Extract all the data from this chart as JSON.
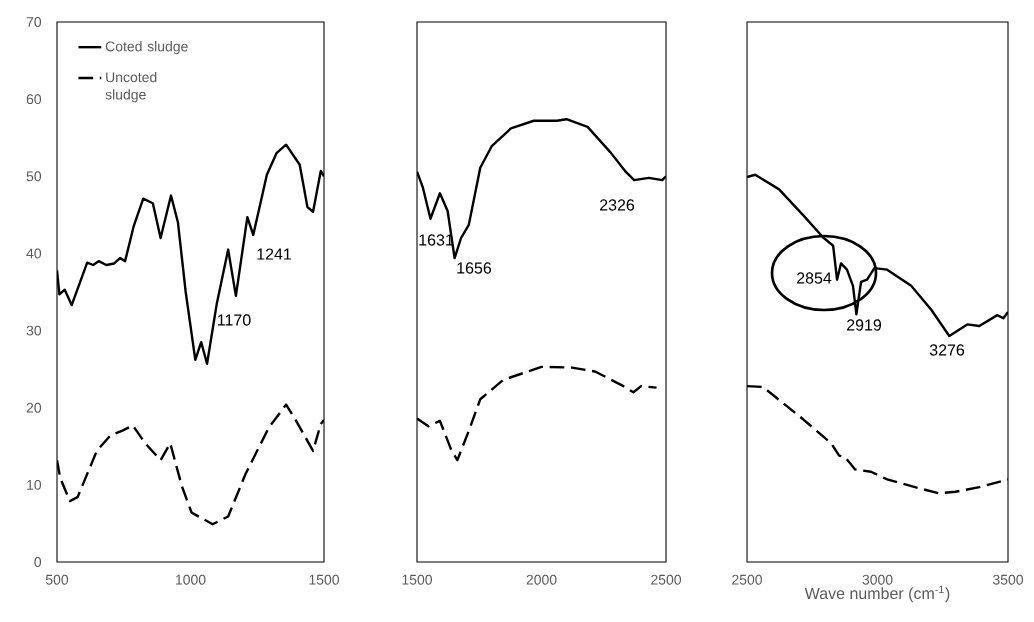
{
  "chart_data": [
    {
      "type": "line",
      "xlim": [
        500,
        1500
      ],
      "xticks": [
        500,
        1000,
        1500
      ],
      "ylim": [
        0,
        70
      ],
      "yticks": [
        0,
        10,
        20,
        30,
        40,
        50,
        60,
        70
      ],
      "legend": "top left",
      "series": [
        {
          "name": "Coted sludge",
          "color": "#000000",
          "line_style": "solid",
          "x": [
            500,
            509,
            529,
            555,
            613,
            635,
            656,
            685,
            714,
            736,
            755,
            787,
            823,
            859,
            888,
            927,
            953,
            982,
            1018,
            1040,
            1062,
            1098,
            1141,
            1170,
            1213,
            1235,
            1286,
            1322,
            1358,
            1409,
            1438,
            1459,
            1488,
            1500
          ],
          "values": [
            37.8,
            34.7,
            35.3,
            33.3,
            38.8,
            38.5,
            39,
            38.5,
            38.7,
            39.4,
            39,
            43.5,
            47.1,
            46.5,
            42,
            47.5,
            44,
            35,
            26.2,
            28.5,
            25.7,
            33.4,
            40.5,
            34.5,
            44.7,
            42.4,
            50.2,
            53,
            54.1,
            51.5,
            46,
            45.4,
            50.7,
            50
          ]
        },
        {
          "name": "Uncoted sludge",
          "color": "#000000",
          "line_style": "dashed",
          "x": [
            500,
            512,
            548,
            577,
            649,
            700,
            743,
            784,
            830,
            888,
            924,
            967,
            1004,
            1083,
            1141,
            1206,
            1293,
            1358,
            1394,
            1459,
            1488,
            1500
          ],
          "values": [
            13.2,
            10.9,
            7.9,
            8.4,
            14.4,
            16.4,
            17,
            17.7,
            15.4,
            13.2,
            15.4,
            9.9,
            6.4,
            4.9,
            5.9,
            11.4,
            17.4,
            20.4,
            18.4,
            14.4,
            17.9,
            18.4
          ]
        }
      ],
      "annotations": [
        "1241",
        "1170"
      ]
    },
    {
      "type": "line",
      "xlim": [
        1500,
        2500
      ],
      "xticks": [
        1500,
        2000,
        2500
      ],
      "ylim": [
        0,
        70
      ],
      "tick_labels": "x",
      "series": [
        {
          "color": "#000000",
          "line_style": "solid",
          "x": [
            1500,
            1523,
            1554,
            1592,
            1623,
            1651,
            1677,
            1708,
            1754,
            1800,
            1877,
            1969,
            2062,
            2100,
            2185,
            2277,
            2338,
            2372,
            2431,
            2485,
            2500
          ],
          "values": [
            50.6,
            48.6,
            44.5,
            47.8,
            45.5,
            39.4,
            42,
            43.7,
            51.1,
            53.9,
            56.2,
            57.2,
            57.2,
            57.4,
            56.4,
            53.1,
            50.6,
            49.5,
            49.8,
            49.5,
            50
          ]
        },
        {
          "color": "#000000",
          "line_style": "dashed",
          "x": [
            1500,
            1546,
            1592,
            1638,
            1662,
            1708,
            1754,
            1846,
            2000,
            2123,
            2215,
            2323,
            2369,
            2400,
            2462
          ],
          "values": [
            18.6,
            17.6,
            18.3,
            14.5,
            13.2,
            17,
            21.1,
            23.6,
            25.3,
            25.2,
            24.7,
            22.9,
            22,
            22.8,
            22.6
          ]
        }
      ],
      "annotations": [
        "1631",
        "1656",
        "2326"
      ]
    },
    {
      "type": "line",
      "xlim": [
        2500,
        3500
      ],
      "xticks": [
        2500,
        3000,
        3500
      ],
      "ylim": [
        0,
        70
      ],
      "tick_labels": "x",
      "xlabel": "Wave number (cm$^{-1}$)",
      "series": [
        {
          "color": "#000000",
          "line_style": "solid",
          "x": [
            2500,
            2531,
            2623,
            2722,
            2791,
            2830,
            2845,
            2860,
            2883,
            2906,
            2919,
            2937,
            2960,
            2988,
            3037,
            3129,
            3206,
            3275,
            3344,
            3390,
            3459,
            3482,
            3500
          ],
          "values": [
            49.9,
            50.2,
            48.3,
            44.7,
            42.1,
            41,
            36.6,
            38.7,
            37.9,
            35.8,
            32.1,
            36.3,
            36.6,
            38.1,
            37.9,
            35.8,
            32.7,
            29.3,
            30.8,
            30.6,
            32,
            31.6,
            32.4
          ]
        },
        {
          "color": "#000000",
          "line_style": "dashed",
          "x": [
            2500,
            2561,
            2638,
            2715,
            2822,
            2853,
            2876,
            2914,
            2975,
            3037,
            3144,
            3236,
            3298,
            3390,
            3500
          ],
          "values": [
            22.8,
            22.7,
            20.6,
            18.5,
            15.4,
            13.8,
            13.6,
            12,
            11.7,
            10.7,
            9.7,
            8.9,
            9.1,
            9.7,
            10.7
          ]
        }
      ],
      "annotations": [
        "2854",
        "2919",
        "3276"
      ]
    }
  ]
}
